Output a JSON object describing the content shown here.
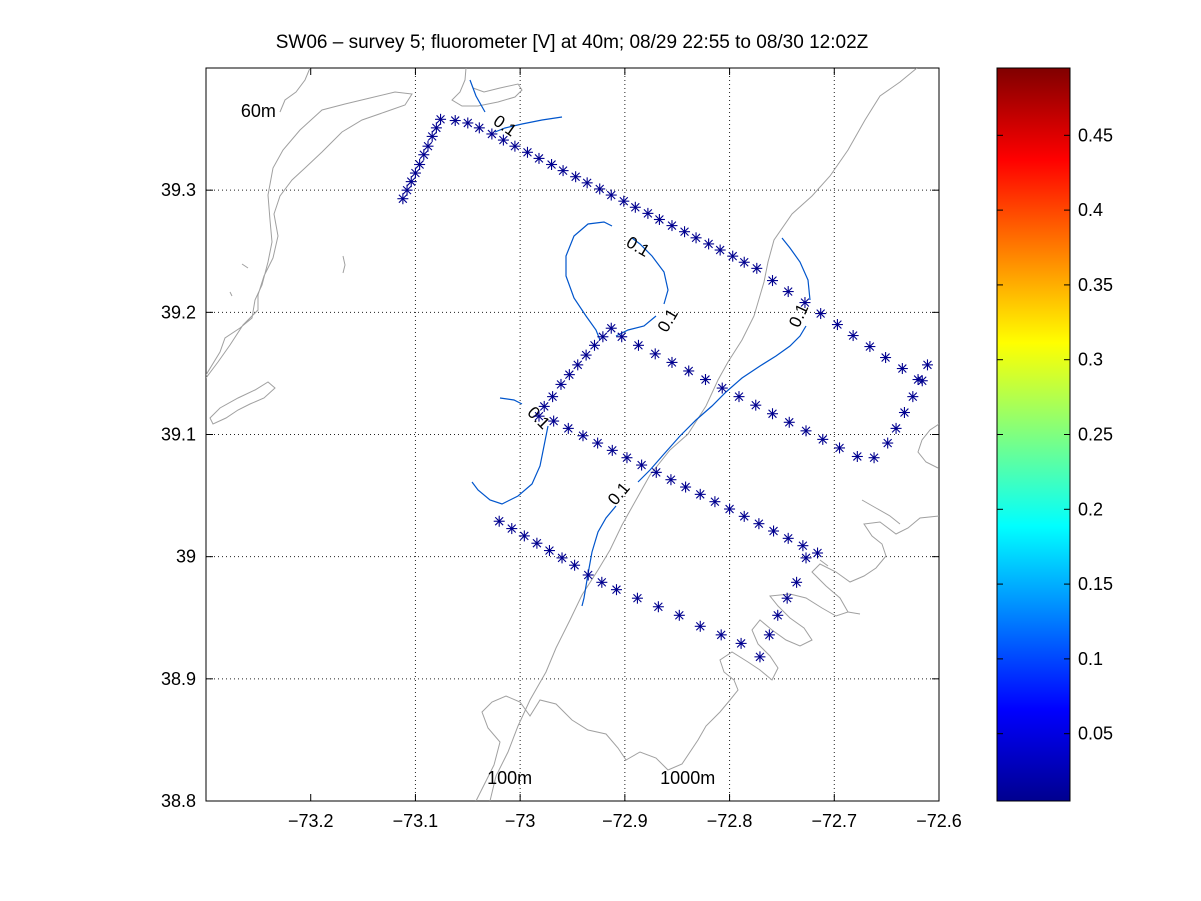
{
  "chart_data": {
    "type": "scatter",
    "title": "SW06 – survey 5; fluorometer [V] at 40m; 08/29 22:55 to 08/30 12:02Z",
    "xlim": [
      -73.3,
      -72.6
    ],
    "ylim": [
      38.8,
      39.4
    ],
    "x_ticks": [
      -73.2,
      -73.1,
      -73.0,
      -72.9,
      -72.8,
      -72.7,
      -72.6
    ],
    "x_tick_labels": [
      "−73.2",
      "−73.1",
      "−73",
      "−72.9",
      "−72.8",
      "−72.7",
      "−72.6"
    ],
    "y_ticks": [
      38.8,
      38.9,
      39.0,
      39.1,
      39.2,
      39.3
    ],
    "y_tick_labels": [
      "38.8",
      "38.9",
      "39",
      "39.1",
      "39.2",
      "39.3"
    ],
    "grid": true,
    "map_labels": [
      {
        "text": "60m",
        "lon": -73.25,
        "lat": 39.36
      },
      {
        "text": "100m",
        "lon": -73.01,
        "lat": 38.814
      },
      {
        "text": "1000m",
        "lon": -72.84,
        "lat": 38.814
      }
    ],
    "contour_level_label": "0.1",
    "contour_labels": [
      {
        "text": "0.1",
        "lon": -73.015,
        "lat": 39.352,
        "angle": 35
      },
      {
        "text": "0.1",
        "lon": -72.888,
        "lat": 39.253,
        "angle": 30
      },
      {
        "text": "0.1",
        "lon": -72.858,
        "lat": 39.193,
        "angle": -60
      },
      {
        "text": "0.1",
        "lon": -72.733,
        "lat": 39.197,
        "angle": -65
      },
      {
        "text": "0.1",
        "lon": -72.983,
        "lat": 39.113,
        "angle": 45
      },
      {
        "text": "0.1",
        "lon": -72.905,
        "lat": 39.051,
        "angle": -50
      }
    ],
    "stations": [
      [
        -73.112,
        39.293
      ],
      [
        -73.108,
        39.3
      ],
      [
        -73.104,
        39.307
      ],
      [
        -73.1,
        39.314
      ],
      [
        -73.096,
        39.321
      ],
      [
        -73.092,
        39.329
      ],
      [
        -73.088,
        39.336
      ],
      [
        -73.084,
        39.344
      ],
      [
        -73.08,
        39.351
      ],
      [
        -73.076,
        39.358
      ],
      [
        -73.062,
        39.357
      ],
      [
        -73.05,
        39.355
      ],
      [
        -73.039,
        39.351
      ],
      [
        -73.027,
        39.346
      ],
      [
        -73.016,
        39.341
      ],
      [
        -73.005,
        39.336
      ],
      [
        -72.993,
        39.331
      ],
      [
        -72.982,
        39.326
      ],
      [
        -72.97,
        39.321
      ],
      [
        -72.959,
        39.316
      ],
      [
        -72.947,
        39.311
      ],
      [
        -72.936,
        39.306
      ],
      [
        -72.924,
        39.301
      ],
      [
        -72.913,
        39.296
      ],
      [
        -72.901,
        39.291
      ],
      [
        -72.89,
        39.286
      ],
      [
        -72.878,
        39.281
      ],
      [
        -72.867,
        39.276
      ],
      [
        -72.855,
        39.271
      ],
      [
        -72.843,
        39.266
      ],
      [
        -72.832,
        39.261
      ],
      [
        -72.82,
        39.256
      ],
      [
        -72.809,
        39.251
      ],
      [
        -72.797,
        39.246
      ],
      [
        -72.786,
        39.241
      ],
      [
        -72.774,
        39.236
      ],
      [
        -72.759,
        39.226
      ],
      [
        -72.744,
        39.217
      ],
      [
        -72.728,
        39.208
      ],
      [
        -72.713,
        39.199
      ],
      [
        -72.697,
        39.19
      ],
      [
        -72.682,
        39.181
      ],
      [
        -72.666,
        39.172
      ],
      [
        -72.651,
        39.163
      ],
      [
        -72.635,
        39.154
      ],
      [
        -72.62,
        39.145
      ],
      [
        -72.611,
        39.157
      ],
      [
        -72.616,
        39.144
      ],
      [
        -72.625,
        39.131
      ],
      [
        -72.633,
        39.118
      ],
      [
        -72.641,
        39.105
      ],
      [
        -72.649,
        39.093
      ],
      [
        -72.662,
        39.081
      ],
      [
        -72.678,
        39.082
      ],
      [
        -72.695,
        39.089
      ],
      [
        -72.711,
        39.096
      ],
      [
        -72.727,
        39.103
      ],
      [
        -72.743,
        39.11
      ],
      [
        -72.759,
        39.117
      ],
      [
        -72.775,
        39.124
      ],
      [
        -72.791,
        39.131
      ],
      [
        -72.807,
        39.138
      ],
      [
        -72.823,
        39.145
      ],
      [
        -72.839,
        39.152
      ],
      [
        -72.855,
        39.159
      ],
      [
        -72.871,
        39.166
      ],
      [
        -72.887,
        39.173
      ],
      [
        -72.903,
        39.18
      ],
      [
        -72.913,
        39.187
      ],
      [
        -72.921,
        39.18
      ],
      [
        -72.929,
        39.173
      ],
      [
        -72.937,
        39.165
      ],
      [
        -72.945,
        39.157
      ],
      [
        -72.953,
        39.149
      ],
      [
        -72.961,
        39.141
      ],
      [
        -72.969,
        39.131
      ],
      [
        -72.977,
        39.123
      ],
      [
        -72.982,
        39.115
      ],
      [
        -72.968,
        39.111
      ],
      [
        -72.954,
        39.105
      ],
      [
        -72.94,
        39.099
      ],
      [
        -72.926,
        39.093
      ],
      [
        -72.912,
        39.087
      ],
      [
        -72.898,
        39.081
      ],
      [
        -72.884,
        39.075
      ],
      [
        -72.87,
        39.069
      ],
      [
        -72.856,
        39.063
      ],
      [
        -72.842,
        39.057
      ],
      [
        -72.828,
        39.051
      ],
      [
        -72.814,
        39.045
      ],
      [
        -72.8,
        39.039
      ],
      [
        -72.786,
        39.033
      ],
      [
        -72.772,
        39.027
      ],
      [
        -72.758,
        39.021
      ],
      [
        -72.744,
        39.015
      ],
      [
        -72.73,
        39.009
      ],
      [
        -72.716,
        39.003
      ],
      [
        -72.727,
        38.999
      ],
      [
        -72.736,
        38.979
      ],
      [
        -72.745,
        38.966
      ],
      [
        -72.754,
        38.952
      ],
      [
        -72.762,
        38.936
      ],
      [
        -72.771,
        38.918
      ],
      [
        -72.789,
        38.929
      ],
      [
        -72.808,
        38.936
      ],
      [
        -72.828,
        38.943
      ],
      [
        -72.848,
        38.952
      ],
      [
        -72.868,
        38.959
      ],
      [
        -72.888,
        38.966
      ],
      [
        -72.908,
        38.973
      ],
      [
        -72.922,
        38.979
      ],
      [
        -72.935,
        38.985
      ],
      [
        -72.948,
        38.993
      ],
      [
        -72.96,
        38.999
      ],
      [
        -72.972,
        39.005
      ],
      [
        -72.984,
        39.011
      ],
      [
        -72.996,
        39.017
      ],
      [
        -73.008,
        39.023
      ],
      [
        -73.02,
        39.029
      ]
    ]
  },
  "colorbar": {
    "min": 0.005,
    "max": 0.495,
    "ticks": [
      0.05,
      0.1,
      0.15,
      0.2,
      0.25,
      0.3,
      0.35,
      0.4,
      0.45
    ],
    "tick_labels": [
      "0.05",
      "0.1",
      "0.15",
      "0.2",
      "0.25",
      "0.3",
      "0.35",
      "0.4",
      "0.45"
    ]
  },
  "colors": {
    "station_marker": "#00008f",
    "contour": "#0055cc",
    "coastline": "#a0a0a0",
    "grid": "#222222"
  }
}
